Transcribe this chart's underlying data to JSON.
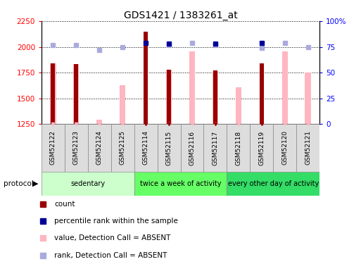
{
  "title": "GDS1421 / 1383261_at",
  "samples": [
    "GSM52122",
    "GSM52123",
    "GSM52124",
    "GSM52125",
    "GSM52114",
    "GSM52115",
    "GSM52116",
    "GSM52117",
    "GSM52118",
    "GSM52119",
    "GSM52120",
    "GSM52121"
  ],
  "value_absent": [
    1840,
    1835,
    1295,
    1630,
    null,
    1780,
    1955,
    1765,
    1610,
    null,
    1955,
    1750
  ],
  "count_present": [
    null,
    null,
    null,
    null,
    2150,
    1780,
    null,
    1770,
    null,
    1840,
    null,
    null
  ],
  "count_absent": [
    1840,
    1835,
    null,
    null,
    null,
    null,
    null,
    null,
    null,
    null,
    null,
    null
  ],
  "rank_present": [
    null,
    null,
    null,
    null,
    79,
    78,
    null,
    78,
    null,
    79,
    null,
    null
  ],
  "rank_absent": [
    77,
    77,
    72,
    75,
    null,
    77,
    79,
    77,
    null,
    74,
    79,
    75
  ],
  "groups": [
    {
      "label": "sedentary",
      "start": 0,
      "end": 4,
      "color": "#ccffcc"
    },
    {
      "label": "twice a week of activity",
      "start": 4,
      "end": 8,
      "color": "#66ff66"
    },
    {
      "label": "every other day of activity",
      "start": 8,
      "end": 12,
      "color": "#33cc55"
    }
  ],
  "ylim_left": [
    1250,
    2250
  ],
  "ylim_right": [
    0,
    100
  ],
  "yticks_left": [
    1250,
    1500,
    1750,
    2000,
    2250
  ],
  "yticks_right": [
    0,
    25,
    50,
    75,
    100
  ],
  "yticklabels_right": [
    "0",
    "25",
    "50",
    "75",
    "100%"
  ],
  "dark_red": "#990000",
  "pink": "#FFB6C1",
  "dark_blue": "#000099",
  "light_blue": "#aaaadd",
  "pink_bar_width": 0.25,
  "dark_bar_width": 0.18
}
